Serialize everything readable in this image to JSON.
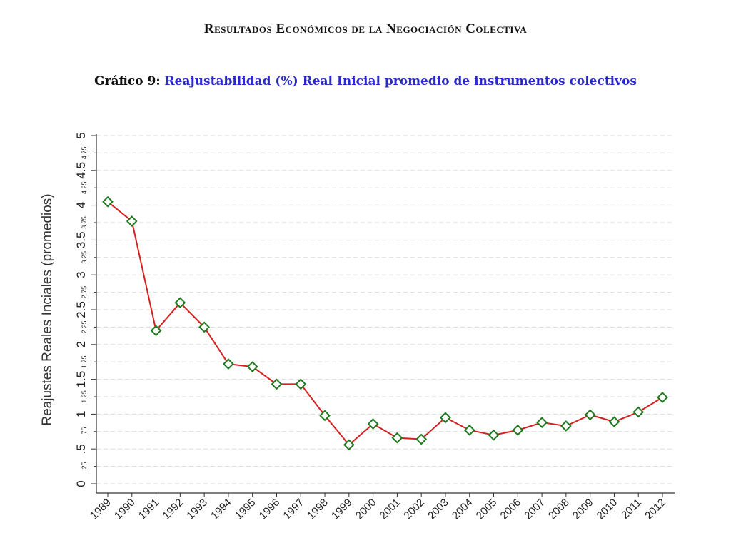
{
  "document": {
    "header": "Resultados Económicos de la Negociación Colectiva",
    "figure_prefix": "Gráfico 9:",
    "figure_title": "Reajustabilidad (%) Real Inicial promedio de instrumentos colectivos"
  },
  "colors": {
    "line": "#d42020",
    "marker": "#1f7a1f",
    "title_blue": "#2a2acc"
  },
  "chart_data": {
    "type": "line",
    "title": "Reajustabilidad (%) Real Inicial promedio de instrumentos colectivos",
    "ylabel": "Reajustes Reales Inciales (promedios)",
    "xlabel": "",
    "ylim": [
      0,
      5
    ],
    "yticks_major": [
      "0",
      ".5",
      "1",
      "1.5",
      "2",
      "2.5",
      "3",
      "3.5",
      "4",
      "4.5",
      "5"
    ],
    "yticks_minor": [
      ".25",
      ".75",
      "1.25",
      "1.75",
      "2.25",
      "2.75",
      "3.25",
      "3.75",
      "4.25",
      "4.75"
    ],
    "grid": true,
    "marker": "hollow diamond",
    "x": [
      "1989",
      "1990",
      "1991",
      "1992",
      "1993",
      "1994",
      "1995",
      "1996",
      "1997",
      "1998",
      "1999",
      "2000",
      "2001",
      "2002",
      "2003",
      "2004",
      "2005",
      "2006",
      "2007",
      "2008",
      "2009",
      "2010",
      "2011",
      "2012"
    ],
    "series": [
      {
        "values": [
          4.05,
          3.77,
          2.2,
          2.6,
          2.25,
          1.72,
          1.68,
          1.43,
          1.43,
          0.98,
          0.56,
          0.86,
          0.66,
          0.64,
          0.95,
          0.77,
          0.7,
          0.77,
          0.88,
          0.83,
          0.99,
          0.89,
          1.03,
          1.24
        ]
      }
    ]
  }
}
